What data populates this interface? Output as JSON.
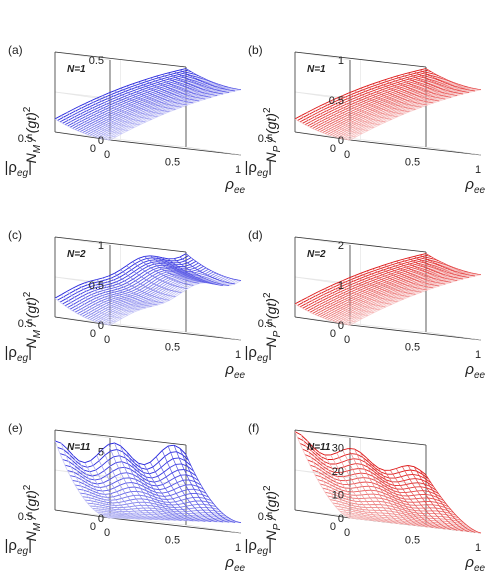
{
  "figure": {
    "background": "#ffffff"
  },
  "chart_data": [
    {
      "panel": "(a)",
      "type": "surface3d",
      "annotation": "N=1",
      "color": "#2222dd",
      "zlabel": {
        "main": "N",
        "sub": "M",
        "rest": " / (gt)",
        "sup": "2"
      },
      "xlabel": "ρ",
      "xlabel_sub": "ee",
      "ylabel": "|ρ",
      "ylabel_sub": "eg",
      "ylabel_close": "|",
      "xticks": [
        "0",
        "0.5",
        "1"
      ],
      "yticks": [
        "0",
        "0.5"
      ],
      "zticks": [
        {
          "v": 0,
          "t": "0"
        },
        {
          "v": 0.5,
          "t": "0.5"
        }
      ],
      "zmax": 0.5,
      "surface": "occupation",
      "scale": 0.5
    },
    {
      "panel": "(b)",
      "type": "surface3d",
      "annotation": "N=1",
      "color": "#dd1111",
      "zlabel": {
        "main": "N",
        "sub": "P",
        "rest": " / (gt)",
        "sup": "2"
      },
      "xlabel": "ρ",
      "xlabel_sub": "ee",
      "ylabel": "|ρ",
      "ylabel_sub": "eg",
      "ylabel_close": "|",
      "xticks": [
        "0",
        "0.5",
        "1"
      ],
      "yticks": [
        "0",
        "0.5"
      ],
      "zticks": [
        {
          "v": 0,
          "t": "0"
        },
        {
          "v": 0.5,
          "t": "0.5"
        },
        {
          "v": 1,
          "t": "1"
        }
      ],
      "zmax": 1,
      "surface": "occupation",
      "scale": 1
    },
    {
      "panel": "(c)",
      "type": "surface3d",
      "annotation": "N=2",
      "color": "#2222dd",
      "zlabel": {
        "main": "N",
        "sub": "M",
        "rest": " / (gt)",
        "sup": "2"
      },
      "xlabel": "ρ",
      "xlabel_sub": "ee",
      "ylabel": "|ρ",
      "ylabel_sub": "eg",
      "ylabel_close": "|",
      "xticks": [
        "0",
        "0.5",
        "1"
      ],
      "yticks": [
        "0",
        "0.5"
      ],
      "zticks": [
        {
          "v": 0,
          "t": "0"
        },
        {
          "v": 0.5,
          "t": "0.5"
        },
        {
          "v": 1,
          "t": "1"
        }
      ],
      "zmax": 1,
      "surface": "mixed",
      "scale": 1
    },
    {
      "panel": "(d)",
      "type": "surface3d",
      "annotation": "N=2",
      "color": "#dd1111",
      "zlabel": {
        "main": "N",
        "sub": "P",
        "rest": " / (gt)",
        "sup": "2"
      },
      "xlabel": "ρ",
      "xlabel_sub": "ee",
      "ylabel": "|ρ",
      "ylabel_sub": "eg",
      "ylabel_close": "|",
      "xticks": [
        "0",
        "0.5",
        "1"
      ],
      "yticks": [
        "0",
        "0.5"
      ],
      "zticks": [
        {
          "v": 0,
          "t": "0"
        },
        {
          "v": 1,
          "t": "1"
        },
        {
          "v": 2,
          "t": "2"
        }
      ],
      "zmax": 2,
      "surface": "occupation",
      "scale": 2
    },
    {
      "panel": "(e)",
      "type": "surface3d",
      "annotation": "N=11",
      "color": "#2222dd",
      "zlabel": {
        "main": "N",
        "sub": "M",
        "rest": " / (gt)",
        "sup": "2"
      },
      "xlabel": "ρ",
      "xlabel_sub": "ee",
      "ylabel": "|ρ",
      "ylabel_sub": "eg",
      "ylabel_close": "|",
      "xticks": [
        "0",
        "0.5",
        "1"
      ],
      "yticks": [
        "0",
        "0.5"
      ],
      "zticks": [
        {
          "v": 0,
          "t": "0"
        },
        {
          "v": 5,
          "t": "5"
        }
      ],
      "zmax": 6,
      "surface": "coherence",
      "scale": 6
    },
    {
      "panel": "(f)",
      "type": "surface3d",
      "annotation": "N=11",
      "color": "#dd1111",
      "zlabel": {
        "main": "N",
        "sub": "P",
        "rest": " / (gt)",
        "sup": "2"
      },
      "xlabel": "ρ",
      "xlabel_sub": "ee",
      "ylabel": "|ρ",
      "ylabel_sub": "eg",
      "ylabel_close": "|",
      "xticks": [
        "0",
        "0.5",
        "1"
      ],
      "yticks": [
        "0",
        "0.5"
      ],
      "zticks": [
        {
          "v": 0,
          "t": "0"
        },
        {
          "v": 10,
          "t": "10"
        },
        {
          "v": 20,
          "t": "20"
        },
        {
          "v": 30,
          "t": "30"
        }
      ],
      "zmax": 34,
      "surface": "coherence-f",
      "scale": 34
    }
  ]
}
